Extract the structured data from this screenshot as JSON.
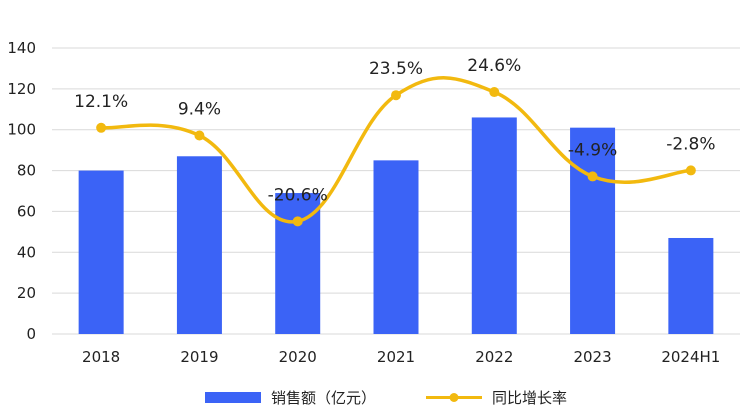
{
  "chart_data": {
    "type": "bar+line",
    "categories": [
      "2018",
      "2019",
      "2020",
      "2021",
      "2022",
      "2023",
      "2024H1"
    ],
    "series": [
      {
        "name": "销售额（亿元）",
        "kind": "bar",
        "axis": "left",
        "color": "#3b63f6",
        "values": [
          80,
          87,
          69,
          85,
          106,
          101,
          47
        ]
      },
      {
        "name": "同比增长率",
        "kind": "line",
        "axis": "right-hidden",
        "color": "#f2b90f",
        "values": [
          12.1,
          9.4,
          -20.6,
          23.5,
          24.6,
          -4.9,
          -2.8
        ],
        "labels": [
          "12.1%",
          "9.4%",
          "-20.6%",
          "23.5%",
          "24.6%",
          "-4.9%",
          "-2.8%"
        ]
      }
    ],
    "y_left": {
      "min": 0,
      "max": 140,
      "step": 20,
      "ticks": [
        "0",
        "20",
        "40",
        "60",
        "80",
        "100",
        "120",
        "140"
      ]
    },
    "y_right_hidden": {
      "min": -60,
      "max": 40
    },
    "grid": true,
    "legend_position": "bottom-center"
  }
}
